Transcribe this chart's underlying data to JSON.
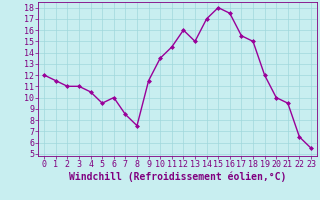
{
  "x": [
    0,
    1,
    2,
    3,
    4,
    5,
    6,
    7,
    8,
    9,
    10,
    11,
    12,
    13,
    14,
    15,
    16,
    17,
    18,
    19,
    20,
    21,
    22,
    23
  ],
  "y": [
    12,
    11.5,
    11,
    11,
    10.5,
    9.5,
    10,
    8.5,
    7.5,
    11.5,
    13.5,
    14.5,
    16,
    15,
    17,
    18,
    17.5,
    15.5,
    15,
    12,
    10,
    9.5,
    6.5,
    5.5
  ],
  "line_color": "#990099",
  "marker": "D",
  "marker_size": 2.0,
  "bg_color": "#c8eef0",
  "grid_color": "#a0d8dc",
  "xlabel": "Windchill (Refroidissement éolien,°C)",
  "xlim": [
    -0.5,
    23.5
  ],
  "ylim": [
    4.8,
    18.5
  ],
  "yticks": [
    5,
    6,
    7,
    8,
    9,
    10,
    11,
    12,
    13,
    14,
    15,
    16,
    17,
    18
  ],
  "xticks": [
    0,
    1,
    2,
    3,
    4,
    5,
    6,
    7,
    8,
    9,
    10,
    11,
    12,
    13,
    14,
    15,
    16,
    17,
    18,
    19,
    20,
    21,
    22,
    23
  ],
  "tick_color": "#800080",
  "xlabel_color": "#800080",
  "xlabel_fontsize": 7,
  "tick_fontsize": 6,
  "line_width": 1.0,
  "spine_color": "#800080"
}
